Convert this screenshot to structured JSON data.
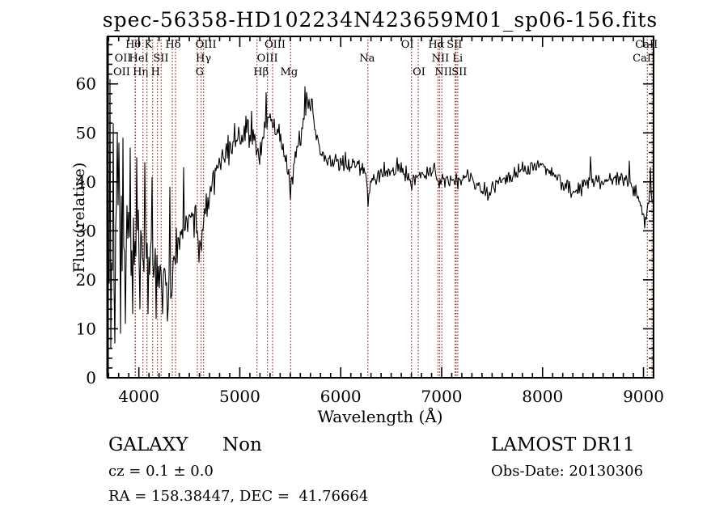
{
  "title": "spec-56358-HD102234N423659M01_sp06-156.fits",
  "annotations": {
    "class_label": "GALAXY",
    "subclass_label": "Non",
    "survey_label": "LAMOST DR11",
    "cz_text": "cz = 0.1 ± 0.0",
    "obs_date_text": "Obs-Date: 20130306",
    "ra_dec_text": "RA = 158.38447, DEC =  41.76664"
  },
  "chart_data": {
    "type": "line",
    "title": "spec-56358-HD102234N423659M01_sp06-156.fits",
    "xlabel": "Wavelength (Å)",
    "ylabel": "Flux (relative)",
    "xlim": [
      3690,
      9100
    ],
    "ylim": [
      0,
      69.7
    ],
    "xticks": [
      4000,
      5000,
      6000,
      7000,
      8000,
      9000
    ],
    "yticks": [
      0,
      10,
      20,
      30,
      40,
      50,
      60
    ],
    "x_minor_step": 100,
    "y_minor_step": 2,
    "grid": false,
    "line_color": "#000000",
    "marker_line_color": "#9a3530",
    "series_name": "flux",
    "markers": [
      {
        "label": "Hθ",
        "wl": 4040,
        "row": 1,
        "dx": -12
      },
      {
        "label": "K",
        "wl": 4184,
        "row": 1,
        "dx": -11
      },
      {
        "label": "Hδ",
        "wl": 4363,
        "row": 1,
        "dx": -3
      },
      {
        "label": "OIII",
        "wl": 4641,
        "row": 1,
        "dx": 3
      },
      {
        "label": "OIII",
        "wl": 5325,
        "row": 1,
        "dx": 3
      },
      {
        "label": "OI",
        "wl": 6701,
        "row": 1,
        "dx": -5
      },
      {
        "label": "Hα",
        "wl": 6980,
        "row": 1,
        "dx": -4
      },
      {
        "label": "SII",
        "wl": 7143,
        "row": 1,
        "dx": -2
      },
      {
        "label": "CaII",
        "wl": 9038,
        "row": 1,
        "dx": -1
      },
      {
        "label": "OII",
        "wl": 3963,
        "row": 2,
        "dx": -15
      },
      {
        "label": "HeI",
        "wl": 4136,
        "row": 2,
        "dx": -17
      },
      {
        "label": "SII",
        "wl": 4331,
        "row": 2,
        "dx": -14
      },
      {
        "label": "Hγ",
        "wl": 4616,
        "row": 2,
        "dx": 3
      },
      {
        "label": "OIII",
        "wl": 5274,
        "row": 2,
        "dx": 0
      },
      {
        "label": "Na",
        "wl": 6269,
        "row": 2,
        "dx": -1
      },
      {
        "label": "NII",
        "wl": 6964,
        "row": 2,
        "dx": 3
      },
      {
        "label": "Li",
        "wl": 7134,
        "row": 2,
        "dx": 3
      },
      {
        "label": "CaII",
        "wl": 9085,
        "row": 2,
        "dx": -10
      },
      {
        "label": "OII",
        "wl": 3966,
        "row": 3,
        "dx": -17
      },
      {
        "label": "Hη",
        "wl": 4080,
        "row": 3,
        "dx": -8
      },
      {
        "label": "H",
        "wl": 4221,
        "row": 3,
        "dx": -7
      },
      {
        "label": "G",
        "wl": 4579,
        "row": 3,
        "dx": 3
      },
      {
        "label": "Hβ",
        "wl": 5170,
        "row": 3,
        "dx": 5
      },
      {
        "label": "Mg",
        "wl": 5504,
        "row": 3,
        "dx": -2
      },
      {
        "label": "OI",
        "wl": 6768,
        "row": 3,
        "dx": 1
      },
      {
        "label": "NII",
        "wl": 7002,
        "row": 3,
        "dx": 2
      },
      {
        "label": "SII",
        "wl": 7159,
        "row": 3,
        "dx": 2
      }
    ],
    "flux_profile": [
      [
        3690,
        24,
        13
      ],
      [
        3730,
        25,
        14
      ],
      [
        3770,
        26,
        13
      ],
      [
        3810,
        27,
        12
      ],
      [
        3860,
        28,
        11
      ],
      [
        3910,
        28,
        10
      ],
      [
        3960,
        28,
        9
      ],
      [
        4010,
        27,
        8
      ],
      [
        4060,
        26,
        8
      ],
      [
        4110,
        25,
        7
      ],
      [
        4160,
        23,
        7
      ],
      [
        4210,
        21,
        6
      ],
      [
        4255,
        18.5,
        5
      ],
      [
        4295,
        17,
        5
      ],
      [
        4335,
        22,
        6
      ],
      [
        4385,
        27,
        6
      ],
      [
        4435,
        30,
        6
      ],
      [
        4485,
        32,
        5
      ],
      [
        4540,
        34,
        5
      ],
      [
        4580,
        30,
        4.5
      ],
      [
        4612,
        27.5,
        4
      ],
      [
        4650,
        34,
        5
      ],
      [
        4705,
        38,
        5
      ],
      [
        4765,
        42,
        4.5
      ],
      [
        4825,
        45,
        4
      ],
      [
        4905,
        47,
        4
      ],
      [
        4985,
        49,
        3.5
      ],
      [
        5065,
        50,
        3.5
      ],
      [
        5145,
        48,
        3
      ],
      [
        5194,
        45.5,
        2.5
      ],
      [
        5245,
        50,
        3.5
      ],
      [
        5305,
        52,
        3.5
      ],
      [
        5365,
        50,
        3
      ],
      [
        5425,
        48,
        3
      ],
      [
        5472,
        44,
        3
      ],
      [
        5504,
        39.5,
        2.5
      ],
      [
        5545,
        44,
        3
      ],
      [
        5605,
        50,
        3.5
      ],
      [
        5655,
        56,
        3
      ],
      [
        5695,
        57,
        2.5
      ],
      [
        5735,
        53,
        3
      ],
      [
        5785,
        47,
        3
      ],
      [
        5845,
        45,
        2.5
      ],
      [
        5925,
        44,
        2.5
      ],
      [
        6005,
        44,
        2.5
      ],
      [
        6085,
        43.5,
        2.5
      ],
      [
        6165,
        43,
        2.2
      ],
      [
        6235,
        42.5,
        2
      ],
      [
        6269,
        37.5,
        1.5
      ],
      [
        6310,
        40.5,
        2
      ],
      [
        6390,
        42,
        2.4
      ],
      [
        6470,
        42,
        2.4
      ],
      [
        6565,
        43,
        2.4
      ],
      [
        6645,
        42,
        2.2
      ],
      [
        6701,
        40,
        1.8
      ],
      [
        6765,
        41,
        2
      ],
      [
        6845,
        41.5,
        2
      ],
      [
        6935,
        42.5,
        2
      ],
      [
        6985,
        40.5,
        2
      ],
      [
        7065,
        40.5,
        2
      ],
      [
        7145,
        40,
        2
      ],
      [
        7225,
        41,
        2
      ],
      [
        7305,
        40.5,
        2
      ],
      [
        7405,
        39,
        2
      ],
      [
        7465,
        38,
        2
      ],
      [
        7545,
        39.5,
        2
      ],
      [
        7625,
        40.5,
        2
      ],
      [
        7705,
        41.5,
        2
      ],
      [
        7805,
        42.5,
        2
      ],
      [
        7905,
        43,
        2
      ],
      [
        7975,
        43.5,
        2
      ],
      [
        8055,
        42.5,
        2
      ],
      [
        8135,
        41,
        2
      ],
      [
        8215,
        39.5,
        2
      ],
      [
        8295,
        38.5,
        2
      ],
      [
        8375,
        38.5,
        2
      ],
      [
        8455,
        40,
        2.4
      ],
      [
        8535,
        40.5,
        2
      ],
      [
        8615,
        40,
        2
      ],
      [
        8705,
        41,
        2
      ],
      [
        8785,
        40.5,
        2
      ],
      [
        8865,
        40,
        2
      ],
      [
        8925,
        38,
        2
      ],
      [
        8975,
        35,
        1.8
      ],
      [
        9015,
        32,
        1.5
      ],
      [
        9050,
        36,
        1.5
      ],
      [
        9075,
        38,
        1.5
      ],
      [
        9100,
        35,
        1.5
      ]
    ],
    "spikes": [
      [
        3718,
        61
      ],
      [
        3722,
        6
      ],
      [
        3745,
        52
      ],
      [
        3760,
        7
      ],
      [
        3788,
        50
      ],
      [
        3801,
        48
      ],
      [
        3815,
        9
      ],
      [
        3840,
        49
      ],
      [
        3870,
        11
      ],
      [
        3918,
        47
      ],
      [
        3942,
        13
      ],
      [
        3975,
        45
      ],
      [
        4010,
        14
      ],
      [
        4060,
        44
      ],
      [
        4090,
        13
      ],
      [
        4130,
        41
      ],
      [
        4170,
        12
      ],
      [
        4232,
        13
      ],
      [
        4280,
        11.5
      ],
      [
        4310,
        39
      ],
      [
        4445,
        43
      ],
      [
        4597,
        23.5
      ],
      [
        4950,
        52
      ],
      [
        5060,
        53.5
      ],
      [
        5120,
        54.5
      ],
      [
        5194,
        43.5
      ],
      [
        5258,
        58.3
      ],
      [
        5504,
        36.4
      ],
      [
        5648,
        59.5
      ],
      [
        6269,
        34.9
      ],
      [
        6701,
        38.3
      ],
      [
        6980,
        38.8
      ],
      [
        7160,
        38.5
      ],
      [
        7455,
        36.2
      ],
      [
        8474,
        45.2
      ],
      [
        8857,
        44.3
      ],
      [
        9008,
        30.5
      ],
      [
        9070,
        43
      ]
    ]
  }
}
